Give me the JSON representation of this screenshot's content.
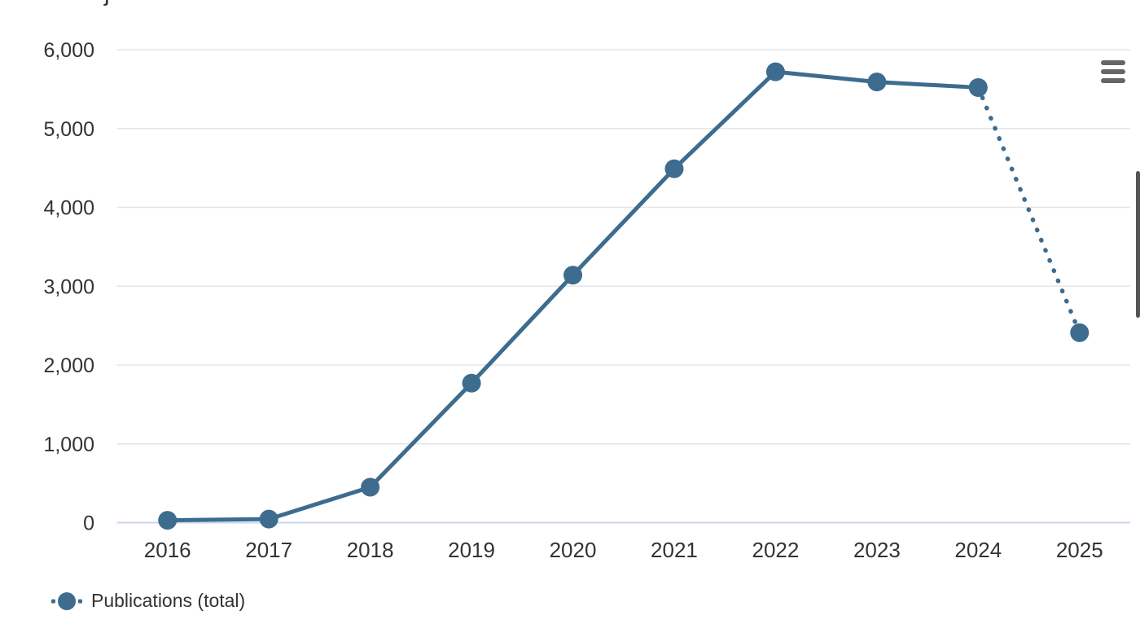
{
  "page": {
    "background": "#ffffff",
    "clipped_title_fragment": "j"
  },
  "colors": {
    "series": "#3d6c8e",
    "gridline": "#e6e6e6",
    "axis_line": "#ccd6eb",
    "label_text": "#333333",
    "menu_icon": "#666666",
    "scrollbar": "#555555"
  },
  "toolbar": {
    "menu_icon": "hamburger-icon"
  },
  "chart_data": {
    "type": "line",
    "title": "",
    "categories": [
      "2016",
      "2017",
      "2018",
      "2019",
      "2020",
      "2021",
      "2022",
      "2023",
      "2024",
      "2025"
    ],
    "series": [
      {
        "name": "Publications (total)",
        "color": "#3d6c8e",
        "values": [
          30,
          45,
          450,
          1770,
          3140,
          4490,
          5720,
          5590,
          5520,
          2410
        ],
        "solid_until_index": 8,
        "dashed_from_index": 8,
        "dashed_note": "segment 2024 to 2025 is dotted (projection)"
      }
    ],
    "xlabel": "",
    "ylabel": "",
    "ylim": [
      0,
      6000
    ],
    "yticks": [
      0,
      1000,
      2000,
      3000,
      4000,
      5000,
      6000
    ],
    "ytick_labels": [
      "0",
      "1,000",
      "2,000",
      "3,000",
      "4,000",
      "5,000",
      "6,000"
    ],
    "grid": true,
    "legend_position": "bottom-left"
  },
  "legend": {
    "marker_style": "dotted line with circle"
  }
}
